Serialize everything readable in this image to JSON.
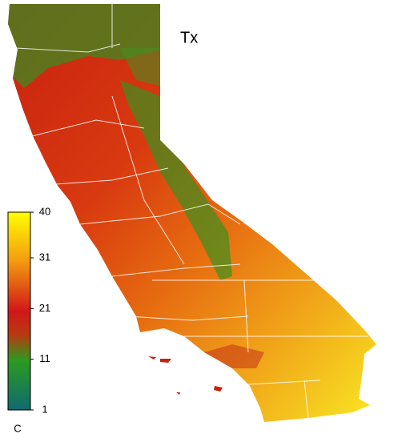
{
  "title": "Tx",
  "colorbar": {
    "lim": [
      1,
      40
    ],
    "ticks": [
      1,
      11,
      21,
      31,
      40
    ],
    "unit": "C"
  }
}
